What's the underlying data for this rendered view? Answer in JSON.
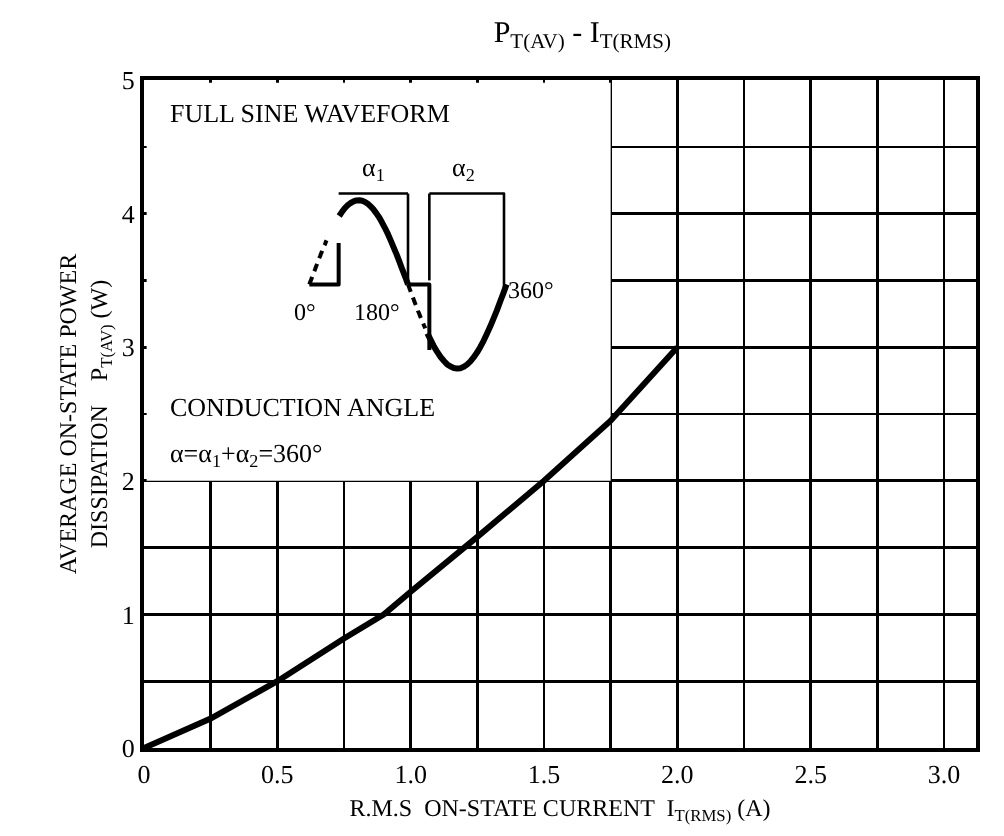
{
  "chart_data": {
    "type": "line",
    "title": "P$_{T(AV)}$ - I$_{T(RMS)}$",
    "xlabel": "R.M.S  ON-STATE CURRENT  I$_{T(RMS)}$ (A)",
    "ylabel": "AVERAGE ON-STATE POWER\nDISSIPATION    P$_{T(AV)}$ (W)",
    "x": [
      0,
      0.25,
      0.5,
      0.75,
      0.9,
      1.0,
      1.25,
      1.5,
      1.75,
      2.0
    ],
    "series": [
      {
        "color": "#000000",
        "values": [
          0,
          0.22,
          0.5,
          0.82,
          1.0,
          1.17,
          1.58,
          2.0,
          2.45,
          3.0
        ]
      }
    ],
    "xlim": [
      0,
      3.12
    ],
    "ylim": [
      0,
      5
    ],
    "xticks": [
      0,
      {
        "value": 0.25,
        "label": null
      },
      0.5,
      {
        "value": 0.75,
        "label": null
      },
      {
        "value": 1,
        "label": "1.0"
      },
      {
        "value": 1.25,
        "label": null
      },
      1.5,
      {
        "value": 1.75,
        "label": null
      },
      {
        "value": 2,
        "label": "2.0"
      },
      {
        "value": 2.25,
        "label": null
      },
      2.5,
      {
        "value": 2.75,
        "label": null
      },
      {
        "value": 3,
        "label": "3.0"
      }
    ],
    "yticks": [
      0,
      {
        "value": 0.5,
        "label": null
      },
      1,
      {
        "value": 1.5,
        "label": null
      },
      2,
      {
        "value": 2.5,
        "label": null
      },
      3,
      {
        "value": 3.5,
        "label": null
      },
      4,
      {
        "value": 4.5,
        "label": null
      },
      5
    ],
    "grid": true,
    "marker": "none",
    "line_style": "solid",
    "annotations": [
      "FULL SINE WAVEFORM",
      "α$_{1}$",
      "α$_{2}$",
      "0°",
      "180°",
      "360°",
      "CONDUCTION ANGLE",
      "α=α$_{1}$+α$_{2}$=360°"
    ]
  }
}
